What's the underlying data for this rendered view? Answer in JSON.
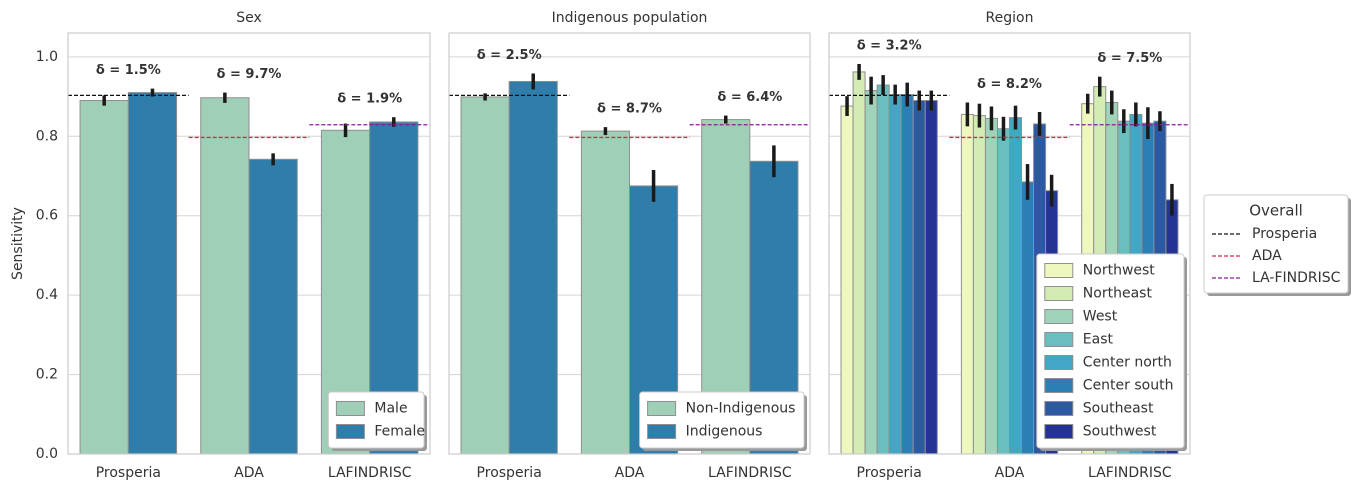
{
  "chart_data": [
    {
      "type": "bar",
      "title": "Sex",
      "ylabel": "Sensitivity",
      "ylim": [
        0,
        1.06
      ],
      "yticks": [
        {
          "value": 0,
          "label": "0.0"
        },
        {
          "value": 0.2,
          "label": "0.2"
        },
        {
          "value": 0.4,
          "label": "0.4"
        },
        {
          "value": 0.6,
          "label": "0.6"
        },
        {
          "value": 0.8,
          "label": "0.8"
        },
        {
          "value": 1,
          "label": "1.0"
        }
      ],
      "categories": [
        "Prosperia",
        "ADA",
        "LAFINDRISC"
      ],
      "series": [
        {
          "name": "Male",
          "color": "#9fcfb7",
          "values": [
            0.89,
            0.897,
            0.815
          ],
          "errors": [
            0.013,
            0.013,
            0.017
          ]
        },
        {
          "name": "Female",
          "color": "#2f7dab",
          "values": [
            0.91,
            0.742,
            0.836
          ],
          "errors": [
            0.01,
            0.015,
            0.012
          ]
        }
      ],
      "annotations": [
        "δ = 1.5%",
        "δ = 9.7%",
        "δ = 1.9%"
      ],
      "legend_loc": "lower right"
    },
    {
      "type": "bar",
      "title": "Indigenous population",
      "categories": [
        "Prosperia",
        "ADA",
        "LAFINDRISC"
      ],
      "series": [
        {
          "name": "Non-Indigenous",
          "color": "#9fcfb7",
          "values": [
            0.899,
            0.813,
            0.842
          ],
          "errors": [
            0.009,
            0.01,
            0.01
          ]
        },
        {
          "name": "Indigenous",
          "color": "#2f7dab",
          "values": [
            0.938,
            0.675,
            0.737
          ],
          "errors": [
            0.02,
            0.04,
            0.04
          ]
        }
      ],
      "annotations": [
        "δ = 2.5%",
        "δ = 8.7%",
        "δ = 6.4%"
      ],
      "legend_loc": "lower right"
    },
    {
      "type": "bar",
      "title": "Region",
      "categories": [
        "Prosperia",
        "ADA",
        "LAFINDRISC"
      ],
      "series": [
        {
          "name": "Northwest",
          "color": "#eef7bd",
          "values": [
            0.876,
            0.855,
            0.882
          ],
          "errors": [
            0.025,
            0.03,
            0.025
          ]
        },
        {
          "name": "Northeast",
          "color": "#d3ecb4",
          "values": [
            0.962,
            0.852,
            0.925
          ],
          "errors": [
            0.02,
            0.03,
            0.025
          ]
        },
        {
          "name": "West",
          "color": "#9fd3ba",
          "values": [
            0.915,
            0.845,
            0.885
          ],
          "errors": [
            0.035,
            0.03,
            0.03
          ]
        },
        {
          "name": "East",
          "color": "#69bebf",
          "values": [
            0.929,
            0.819,
            0.838
          ],
          "errors": [
            0.025,
            0.03,
            0.03
          ]
        },
        {
          "name": "Center north",
          "color": "#41a7c4",
          "values": [
            0.905,
            0.847,
            0.855
          ],
          "errors": [
            0.025,
            0.03,
            0.03
          ]
        },
        {
          "name": "Center south",
          "color": "#2c7fb4",
          "values": [
            0.905,
            0.685,
            0.833
          ],
          "errors": [
            0.03,
            0.045,
            0.04
          ]
        },
        {
          "name": "Southeast",
          "color": "#2b5aa3",
          "values": [
            0.89,
            0.831,
            0.838
          ],
          "errors": [
            0.025,
            0.03,
            0.025
          ]
        },
        {
          "name": "Southwest",
          "color": "#253494",
          "values": [
            0.89,
            0.663,
            0.64
          ],
          "errors": [
            0.025,
            0.04,
            0.04
          ]
        }
      ],
      "annotations": [
        "δ = 3.2%",
        "δ = 8.2%",
        "δ = 7.5%"
      ],
      "legend_loc": "lower right"
    }
  ],
  "overall_legend": {
    "title": "Overall",
    "lines": [
      {
        "name": "Prosperia",
        "color": "#111111",
        "value": 0.903
      },
      {
        "name": "ADA",
        "color": "#d6284b",
        "value": 0.797
      },
      {
        "name": "LA-FINDRISC",
        "color": "#8b1a9c",
        "value": 0.829
      }
    ]
  }
}
